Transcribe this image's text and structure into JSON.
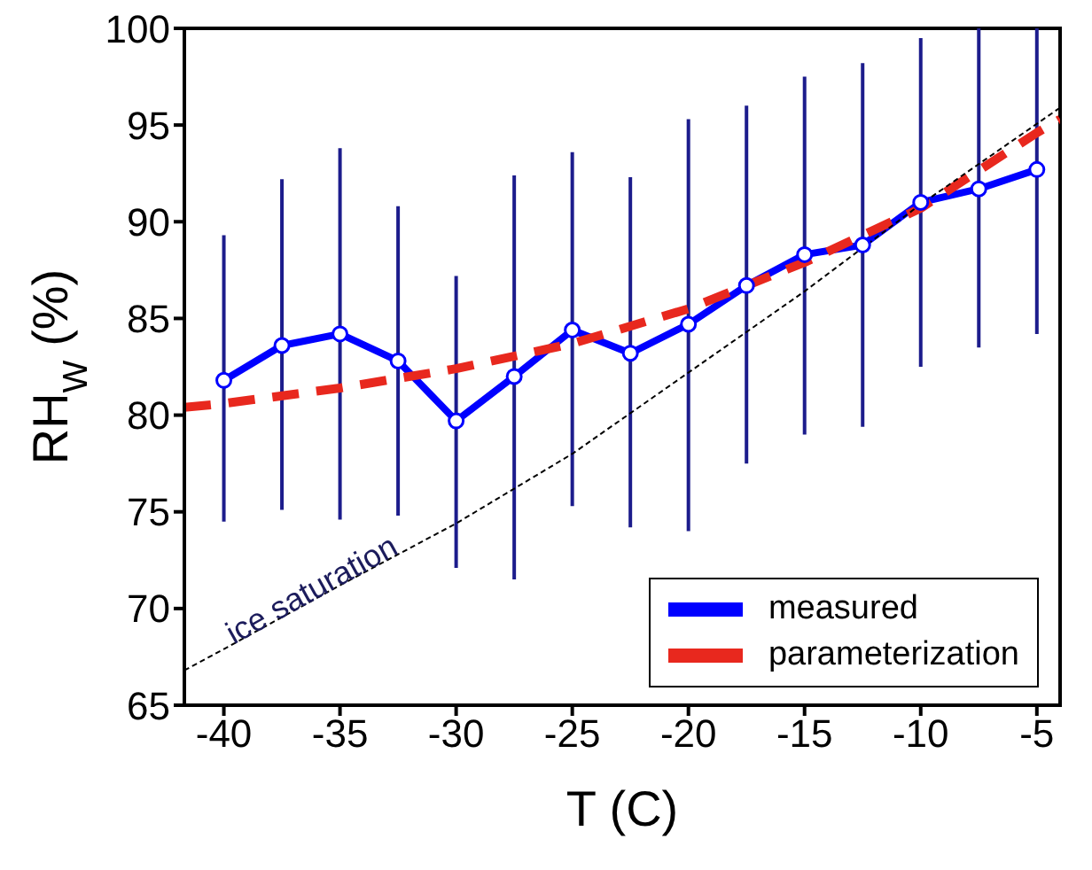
{
  "chart_data": {
    "type": "line",
    "xlabel": "T (C)",
    "ylabel": "RH$_{W}$ (%)",
    "xlim": [
      -41.7,
      -4
    ],
    "xticks": [
      -40,
      -35,
      -30,
      -25,
      -20,
      -15,
      -10,
      -5
    ],
    "ylim": [
      65,
      100
    ],
    "yticks": [
      65,
      70,
      75,
      80,
      85,
      90,
      95,
      100
    ],
    "grid": false,
    "legend": "bottom right",
    "series": [
      {
        "name": "measured",
        "color": "#0000ff",
        "marker": "circle",
        "line_style": "solid",
        "x": [
          -40,
          -37.5,
          -35,
          -32.5,
          -30,
          -27.5,
          -25,
          -22.5,
          -20,
          -17.5,
          -15,
          -12.5,
          -10,
          -7.5,
          -5
        ],
        "values": [
          81.8,
          83.6,
          84.2,
          82.8,
          79.7,
          82.0,
          84.4,
          83.2,
          84.7,
          86.7,
          88.3,
          88.8,
          91.0,
          91.7,
          92.7
        ],
        "errors": [
          [
            74.5,
            89.3
          ],
          [
            75.1,
            92.2
          ],
          [
            74.6,
            93.8
          ],
          [
            74.8,
            90.8
          ],
          [
            72.1,
            87.2
          ],
          [
            71.5,
            92.4
          ],
          [
            75.3,
            93.6
          ],
          [
            74.2,
            92.3
          ],
          [
            74.0,
            95.3
          ],
          [
            77.5,
            96.0
          ],
          [
            79.0,
            97.5
          ],
          [
            79.4,
            98.2
          ],
          [
            82.5,
            99.5
          ],
          [
            83.5,
            100
          ],
          [
            84.2,
            100
          ]
        ]
      },
      {
        "name": "parameterization",
        "color": "#e8281e",
        "marker": "none",
        "line_style": "dashed",
        "x": [
          -41.7,
          -40,
          -35,
          -30,
          -25,
          -20,
          -15,
          -10,
          -5,
          -4
        ],
        "values": [
          80.4,
          80.6,
          81.4,
          82.4,
          83.7,
          85.5,
          87.9,
          90.7,
          94.6,
          95.3
        ]
      },
      {
        "color": "#000000",
        "marker": "none",
        "line_style": "dashed",
        "x": [
          -41.7,
          -40,
          -35,
          -30,
          -25,
          -20,
          -15,
          -10,
          -4
        ],
        "values": [
          66.8,
          67.9,
          71.2,
          74.4,
          78.0,
          82.2,
          86.4,
          90.9,
          95.9
        ]
      }
    ],
    "annotations": [
      {
        "text": "ice saturation",
        "x": -36,
        "y": 70.5
      }
    ]
  }
}
